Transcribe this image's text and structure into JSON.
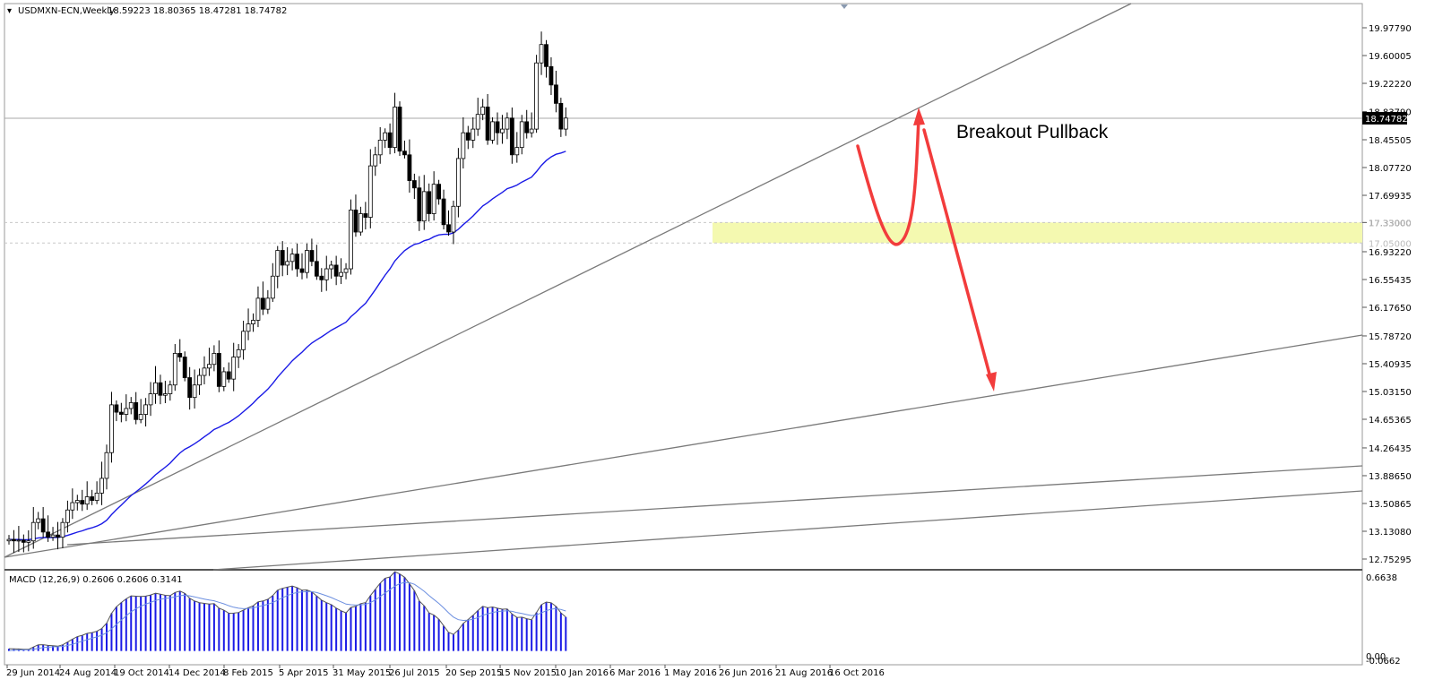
{
  "chart_data": [
    {
      "type": "candlestick",
      "header": {
        "symbol": "USDMXN-ECN,Weekly",
        "ohlc": "18.59223 18.80365 18.47281 18.74782"
      },
      "last_price_label": "18.74782",
      "y_ticks": [
        "19.97790",
        "19.60005",
        "19.22220",
        "18.83790",
        "18.45505",
        "18.07720",
        "17.69935",
        "17.33000",
        "16.93220",
        "16.55435",
        "16.17650",
        "15.78720",
        "15.40935",
        "15.03150",
        "14.65365",
        "14.26435",
        "13.88650",
        "13.50865",
        "13.13080",
        "12.75295"
      ],
      "x_ticks": [
        "29 Jun 2014",
        "24 Aug 2014",
        "19 Oct 2014",
        "14 Dec 2014",
        "8 Feb 2015",
        "5 Apr 2015",
        "31 May 2015",
        "26 Jul 2015",
        "20 Sep 2015",
        "15 Nov 2015",
        "10 Jan 2016",
        "6 Mar 2016",
        "1 May 2016",
        "26 Jun 2016",
        "21 Aug 2016",
        "16 Oct 2016"
      ],
      "ylim": [
        12.6,
        20.35
      ],
      "zone": {
        "low": 17.05,
        "high": 17.33,
        "low_label": "17.05000",
        "high_label": "17.33000",
        "color": "#f4f9b0"
      },
      "closes": [
        13.02,
        13.0,
        13.01,
        12.98,
        13.0,
        13.25,
        13.3,
        13.12,
        13.05,
        13.08,
        13.05,
        13.25,
        13.42,
        13.52,
        13.55,
        13.5,
        13.6,
        13.55,
        13.65,
        13.85,
        14.2,
        14.85,
        14.75,
        14.72,
        14.8,
        14.88,
        14.65,
        14.72,
        14.85,
        15.0,
        15.15,
        14.98,
        15.0,
        15.12,
        15.55,
        15.5,
        15.22,
        14.95,
        15.12,
        15.25,
        15.35,
        15.4,
        15.55,
        15.1,
        15.3,
        15.2,
        15.5,
        15.6,
        15.85,
        15.95,
        16.0,
        16.3,
        16.15,
        16.3,
        16.6,
        16.95,
        16.75,
        16.8,
        16.9,
        16.7,
        16.65,
        16.95,
        16.8,
        16.6,
        16.55,
        16.7,
        16.75,
        16.6,
        16.65,
        16.7,
        17.5,
        17.2,
        17.45,
        17.4,
        18.1,
        18.25,
        18.45,
        18.55,
        18.35,
        18.9,
        18.3,
        18.25,
        17.9,
        17.8,
        17.35,
        17.75,
        17.45,
        17.85,
        17.65,
        17.3,
        17.2,
        17.55,
        18.2,
        18.55,
        18.45,
        18.6,
        18.8,
        18.9,
        18.45,
        18.7,
        18.55,
        18.6,
        18.75,
        18.25,
        18.35,
        18.7,
        18.55,
        18.6,
        19.5,
        19.75,
        19.45,
        19.2,
        18.95,
        18.6,
        18.75
      ],
      "moving_average_label": "EMA",
      "moving_average_color": "#1a1ae6",
      "annotation": "Breakout Pullback",
      "trendlines": 4
    },
    {
      "type": "bar",
      "title": "MACD (12,26,9) 0.2606 0.2606 0.3141",
      "y_ticks": [
        "0.6638",
        "0.00",
        "-0.0662"
      ],
      "ylim": [
        -0.08,
        0.68
      ],
      "note": "MACD histogram bars (blue) with signal line, values follow EMA distance"
    }
  ]
}
